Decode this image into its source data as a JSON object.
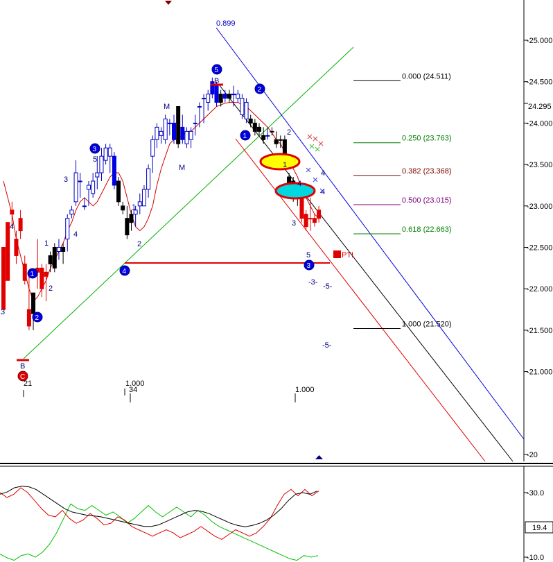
{
  "chart_data": {
    "type": "candlestick",
    "price_axis": {
      "ticks": [
        "25.000",
        "24.500",
        "24.000",
        "23.500",
        "23.000",
        "22.500",
        "22.000",
        "21.500",
        "21.000",
        "20"
      ],
      "current_price": "24.295",
      "ylim": [
        20.0,
        25.4
      ]
    },
    "indicator_axis": {
      "ticks": [
        "30.0",
        "10.0"
      ],
      "current_value": "19.4",
      "ylim": [
        8,
        34
      ]
    },
    "fib_levels": [
      {
        "label": "0.000 (24.511)",
        "value": 24.511,
        "color": "#000000"
      },
      {
        "label": "0.250 (23.763)",
        "value": 23.763,
        "color": "#008000"
      },
      {
        "label": "0.382 (23.368)",
        "value": 23.368,
        "color": "#800000"
      },
      {
        "label": "0.500 (23.015)",
        "value": 23.015,
        "color": "#800080"
      },
      {
        "label": "0.618 (22.663)",
        "value": 22.663,
        "color": "#008000"
      },
      {
        "label": "1.000 (21.520)",
        "value": 21.52,
        "color": "#000000"
      }
    ],
    "channel_label": "0.899",
    "cycle_labels": [
      "21",
      "1.000",
      "34",
      "1.000"
    ],
    "target_label": "PTI",
    "candles": [
      [
        21.75,
        21.95,
        22.35,
        22.5,
        "r"
      ],
      [
        22.1,
        22.15,
        22.55,
        22.8,
        "r"
      ],
      [
        22.9,
        22.75,
        23.05,
        22.95,
        "r"
      ],
      [
        22.6,
        22.3,
        22.7,
        22.4,
        "r"
      ],
      [
        22.85,
        22.6,
        22.95,
        22.7,
        "r"
      ],
      [
        22.3,
        22.05,
        22.4,
        22.1,
        "r"
      ],
      [
        21.75,
        21.5,
        22.15,
        21.55,
        "r"
      ],
      [
        21.7,
        21.5,
        21.95,
        21.95,
        "k"
      ],
      [
        22.2,
        22.0,
        22.6,
        22.25,
        "r"
      ],
      [
        22.0,
        21.9,
        22.3,
        22.25,
        "r"
      ],
      [
        22.15,
        21.85,
        22.3,
        22.2,
        "r"
      ],
      [
        22.3,
        22.2,
        22.45,
        22.4,
        "k"
      ],
      [
        22.5,
        22.2,
        22.55,
        22.25,
        "k"
      ],
      [
        22.45,
        22.35,
        22.6,
        22.5,
        "o"
      ],
      [
        22.45,
        22.3,
        22.55,
        22.5,
        "k"
      ],
      [
        22.6,
        22.45,
        22.9,
        22.85,
        "o"
      ],
      [
        22.9,
        22.85,
        23.0,
        22.95,
        "o"
      ],
      [
        23.4,
        23.0,
        23.55,
        23.05,
        "o"
      ],
      [
        23.3,
        23.1,
        23.4,
        23.3,
        "o"
      ],
      [
        23.0,
        22.95,
        23.1,
        23.0,
        "o"
      ],
      [
        23.2,
        23.0,
        23.3,
        23.25,
        "o"
      ],
      [
        23.3,
        23.1,
        23.4,
        23.15,
        "o"
      ],
      [
        23.4,
        23.2,
        23.6,
        23.35,
        "o"
      ],
      [
        23.6,
        23.3,
        23.7,
        23.4,
        "o"
      ],
      [
        23.7,
        23.5,
        23.75,
        23.55,
        "o"
      ],
      [
        23.7,
        23.4,
        23.75,
        23.6,
        "o"
      ],
      [
        23.6,
        23.2,
        23.65,
        23.25,
        "b"
      ],
      [
        23.3,
        23.0,
        23.35,
        23.05,
        "k"
      ],
      [
        23.0,
        22.9,
        23.05,
        22.95,
        "k"
      ],
      [
        22.85,
        22.6,
        23.0,
        22.65,
        "k"
      ],
      [
        22.8,
        22.7,
        22.95,
        22.9,
        "k"
      ],
      [
        22.9,
        22.75,
        23.0,
        22.95,
        "o"
      ],
      [
        23.05,
        22.9,
        23.15,
        23.0,
        "o"
      ],
      [
        23.2,
        23.0,
        23.25,
        23.0,
        "o"
      ],
      [
        23.2,
        23.1,
        23.5,
        23.45,
        "o"
      ],
      [
        23.6,
        23.4,
        23.85,
        23.8,
        "o"
      ],
      [
        23.8,
        23.7,
        24.0,
        23.95,
        "o"
      ],
      [
        23.9,
        23.75,
        23.95,
        23.85,
        "o"
      ],
      [
        24.05,
        23.75,
        24.1,
        23.8,
        "o"
      ],
      [
        24.0,
        23.85,
        24.05,
        24.0,
        "b"
      ],
      [
        24.0,
        23.75,
        24.1,
        23.8,
        "b"
      ],
      [
        24.2,
        23.7,
        24.2,
        23.75,
        "k"
      ],
      [
        23.95,
        23.75,
        24.1,
        23.8,
        "b"
      ],
      [
        23.9,
        23.7,
        23.95,
        23.75,
        "o"
      ],
      [
        23.9,
        23.7,
        23.95,
        23.8,
        "o"
      ],
      [
        24.0,
        23.85,
        24.1,
        24.0,
        "o"
      ],
      [
        24.2,
        23.95,
        24.25,
        24.2,
        "o"
      ],
      [
        24.3,
        24.0,
        24.35,
        24.3,
        "o"
      ],
      [
        24.35,
        24.15,
        24.4,
        24.25,
        "o"
      ],
      [
        24.5,
        24.3,
        24.55,
        24.35,
        "b"
      ],
      [
        24.45,
        24.2,
        24.5,
        24.25,
        "b"
      ],
      [
        24.35,
        24.2,
        24.4,
        24.25,
        "k"
      ],
      [
        24.35,
        24.25,
        24.4,
        24.3,
        "b"
      ],
      [
        24.35,
        24.25,
        24.4,
        24.3,
        "k"
      ],
      [
        24.35,
        24.2,
        24.45,
        24.35,
        "o"
      ],
      [
        24.3,
        24.25,
        24.4,
        24.35,
        "o"
      ],
      [
        24.3,
        24.05,
        24.35,
        24.1,
        "o"
      ],
      [
        24.25,
        24.0,
        24.3,
        24.05,
        "o"
      ],
      [
        24.05,
        23.95,
        24.1,
        24.0,
        "k"
      ],
      [
        24.0,
        23.85,
        24.05,
        23.9,
        "k"
      ],
      [
        23.9,
        23.85,
        24.0,
        23.95,
        "k"
      ],
      [
        23.85,
        23.75,
        23.95,
        23.8,
        "k"
      ],
      [
        23.85,
        23.8,
        23.95,
        23.85,
        "o"
      ],
      [
        23.9,
        23.85,
        23.95,
        23.9,
        "k"
      ],
      [
        23.8,
        23.7,
        23.9,
        23.75,
        "k"
      ],
      [
        23.8,
        23.7,
        23.85,
        23.8,
        "k"
      ],
      [
        23.8,
        23.45,
        23.85,
        23.5,
        "k"
      ],
      [
        23.2,
        23.1,
        23.4,
        23.35,
        "k"
      ],
      [
        23.3,
        23.05,
        23.35,
        23.15,
        "k"
      ],
      [
        23.1,
        23.0,
        23.2,
        23.15,
        "k"
      ],
      [
        23.1,
        22.8,
        23.15,
        22.85,
        "r"
      ],
      [
        22.9,
        22.7,
        22.95,
        22.75,
        "r"
      ],
      [
        22.85,
        22.7,
        23.1,
        22.85,
        "r"
      ],
      [
        22.85,
        22.75,
        22.9,
        22.8,
        "r"
      ],
      [
        22.95,
        22.8,
        23.0,
        22.85,
        "r"
      ]
    ],
    "sma_price": [
      23.3,
      23.1,
      22.9,
      22.6,
      22.4,
      22.2,
      22.0,
      21.85,
      21.9,
      22.0,
      22.1,
      22.25,
      22.35,
      22.45,
      22.55,
      22.7,
      22.8,
      22.95,
      23.05,
      23.1,
      23.05,
      23.0,
      23.05,
      23.15,
      23.25,
      23.35,
      23.4,
      23.4,
      23.3,
      23.1,
      22.9,
      22.75,
      22.7,
      22.75,
      22.85,
      23.0,
      23.25,
      23.45,
      23.6,
      23.75,
      23.8,
      23.82,
      23.85,
      23.9,
      23.9,
      23.95,
      24.0,
      24.05,
      24.1,
      24.15,
      24.2,
      24.22,
      24.24,
      24.25,
      24.25,
      24.25,
      24.22,
      24.2,
      24.15,
      24.1,
      24.05,
      24.0,
      23.95,
      23.88,
      23.8,
      23.75,
      23.65,
      23.55,
      23.45,
      23.35,
      23.2,
      23.1,
      23.0,
      22.9,
      22.85
    ],
    "indicator_black": [
      29.5,
      30.2,
      31.5,
      32.0,
      31.8,
      31.0,
      29.5,
      28.0,
      26.5,
      25.0,
      24.0,
      23.5,
      23.0,
      22.8,
      22.5,
      22.0,
      21.5,
      21.0,
      20.5,
      20.0,
      19.5,
      19.5,
      20.0,
      21.0,
      22.0,
      23.0,
      24.0,
      24.5,
      24.2,
      23.5,
      22.5,
      21.5,
      20.5,
      19.8,
      19.4,
      19.8,
      20.5,
      21.5,
      23.0,
      25.0,
      27.5,
      29.5,
      30.0,
      29.5,
      30.5
    ],
    "indicator_red": [
      30.0,
      28.5,
      29.5,
      31.5,
      30.0,
      27.5,
      25.0,
      23.0,
      22.5,
      24.5,
      22.0,
      20.5,
      21.5,
      23.5,
      22.0,
      20.0,
      20.5,
      22.5,
      21.5,
      19.5,
      18.5,
      17.5,
      16.5,
      17.5,
      18.5,
      17.5,
      16.0,
      17.0,
      18.0,
      19.5,
      18.0,
      16.5,
      15.5,
      17.0,
      18.5,
      17.5,
      16.5,
      17.5,
      19.5,
      22.0,
      26.0,
      29.5,
      31.0,
      29.0,
      31.0,
      29.0,
      30.5
    ],
    "indicator_green": [
      11.0,
      9.8,
      9.0,
      10.5,
      11.0,
      10.0,
      11.5,
      14.0,
      17.5,
      22.0,
      26.5,
      25.0,
      24.5,
      26.0,
      24.5,
      23.0,
      24.0,
      22.5,
      20.5,
      22.0,
      24.0,
      26.0,
      24.0,
      22.5,
      24.0,
      25.5,
      24.0,
      22.5,
      24.5,
      23.0,
      21.0,
      19.5,
      18.5,
      17.5,
      16.5,
      15.5,
      14.5,
      13.5,
      12.5,
      11.5,
      10.5,
      9.5,
      9.0,
      10.5,
      10.0,
      10.5
    ]
  }
}
